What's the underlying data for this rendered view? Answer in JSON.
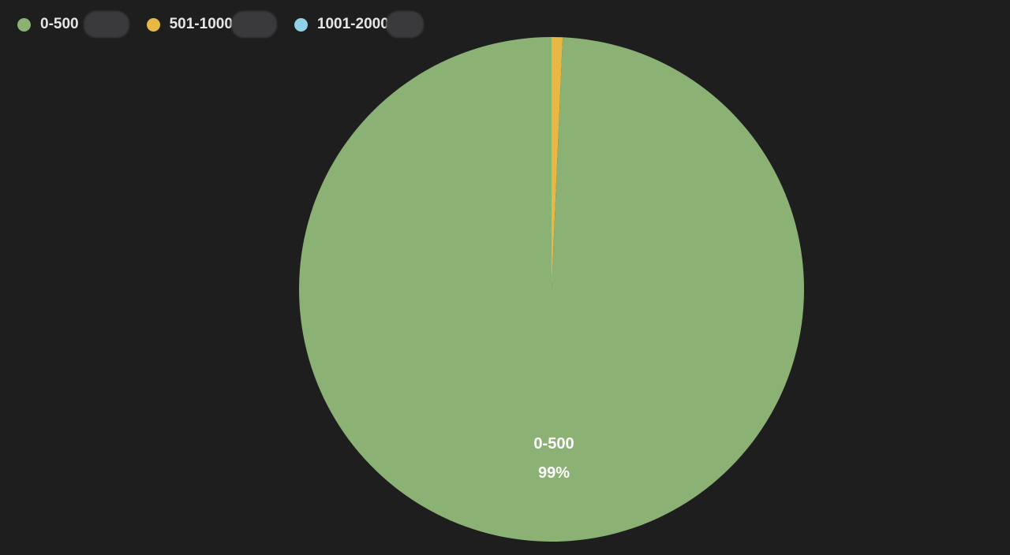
{
  "chart_data": {
    "type": "pie",
    "series": [
      {
        "name": "0-500",
        "value": 99.3,
        "color": "#8bb174"
      },
      {
        "name": "501-1000",
        "value": 0.7,
        "color": "#e8b845"
      },
      {
        "name": "1001-2000",
        "value": 0,
        "color": "#8fd0ea"
      }
    ],
    "slice_label": {
      "name": "0-500",
      "percent": "99%"
    },
    "legend_position": "top-left"
  },
  "legend": [
    {
      "label": "0-500",
      "color": "#8bb174"
    },
    {
      "label": "501-1000",
      "color": "#e8b845"
    },
    {
      "label": "1001-2000",
      "color": "#8fd0ea"
    }
  ]
}
